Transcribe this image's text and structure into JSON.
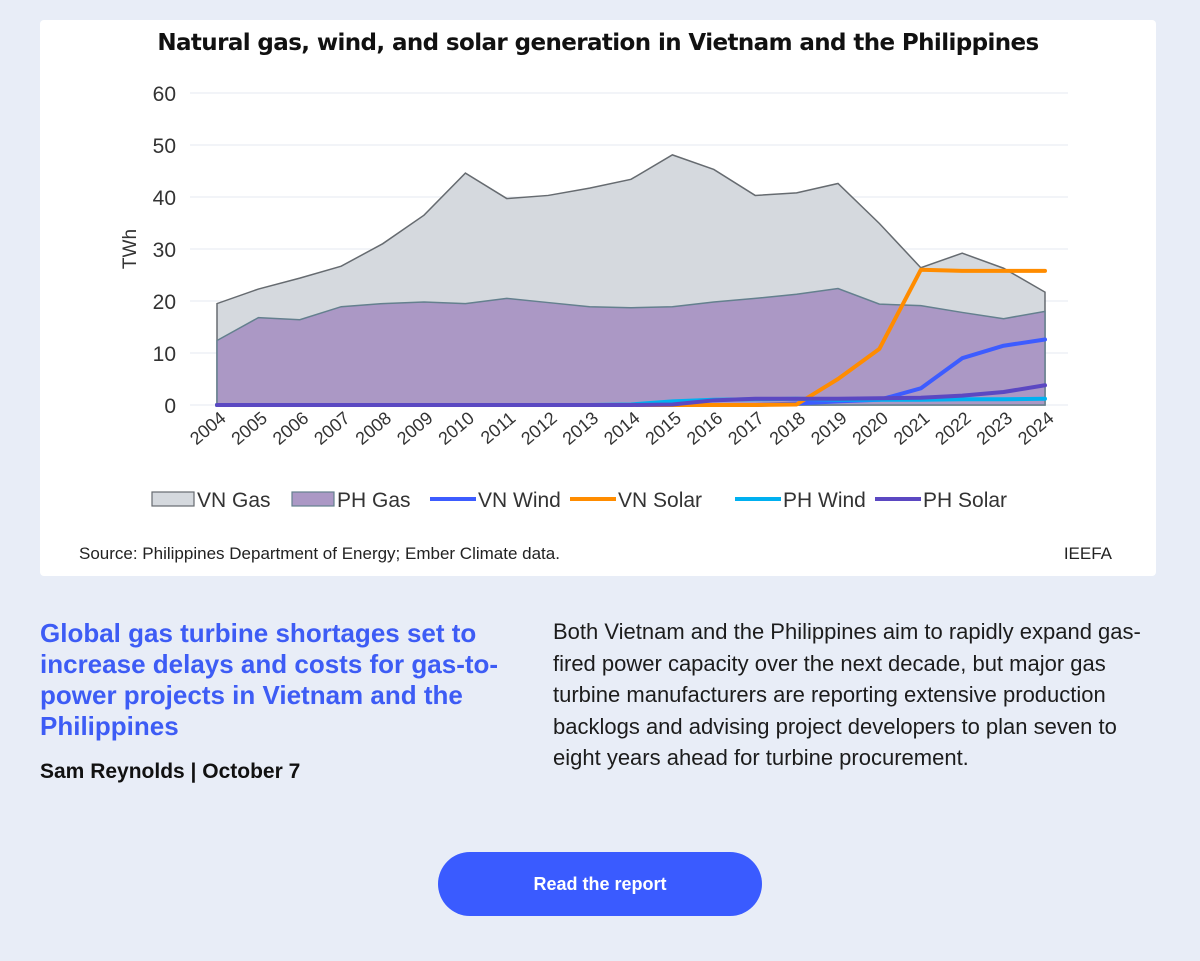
{
  "chart_data": {
    "type": "area",
    "title": "Natural gas, wind, and solar generation in Vietnam and the Philippines",
    "ylabel": "TWh",
    "xlabel": "",
    "ylim": [
      0,
      60
    ],
    "yticks": [
      "0",
      "10",
      "20",
      "30",
      "40",
      "50",
      "60"
    ],
    "categories": [
      "2004",
      "2005",
      "2006",
      "2007",
      "2008",
      "2009",
      "2010",
      "2011",
      "2012",
      "2013",
      "2014",
      "2015",
      "2016",
      "2017",
      "2018",
      "2019",
      "2020",
      "2021",
      "2022",
      "2023",
      "2024"
    ],
    "series": [
      {
        "name": "VN Gas",
        "kind": "area",
        "color": "#d5d9de",
        "stroke": "#666b70",
        "values": [
          19.5,
          22.3,
          24.4,
          26.7,
          31,
          36.5,
          44.6,
          39.7,
          40.3,
          41.7,
          43.4,
          48.1,
          45.3,
          40.3,
          40.8,
          42.6,
          34.9,
          26.4,
          29.2,
          26.3,
          21.7
        ]
      },
      {
        "name": "PH Gas",
        "kind": "area",
        "color": "#ab98c5",
        "stroke": "#64808e",
        "values": [
          12.4,
          16.8,
          16.4,
          18.9,
          19.5,
          19.8,
          19.5,
          20.5,
          19.7,
          18.9,
          18.7,
          18.9,
          19.8,
          20.5,
          21.3,
          22.4,
          19.4,
          19.1,
          17.8,
          16.6,
          18.0
        ]
      },
      {
        "name": "VN Wind",
        "kind": "line",
        "color": "#3d5cff",
        "values": [
          0,
          0,
          0,
          0,
          0,
          0,
          0,
          0,
          0,
          0,
          0,
          0,
          0,
          0,
          0.3,
          0.7,
          1.0,
          3.2,
          9.0,
          11.4,
          12.6
        ]
      },
      {
        "name": "VN Solar",
        "kind": "line",
        "color": "#ff8c00",
        "values": [
          0,
          0,
          0,
          0,
          0,
          0,
          0,
          0,
          0,
          0,
          0,
          0,
          0,
          0,
          0.1,
          5.0,
          10.8,
          26.0,
          25.8,
          25.8,
          25.8
        ]
      },
      {
        "name": "PH  Wind",
        "kind": "line",
        "color": "#00b0f0",
        "values": [
          0,
          0,
          0,
          0,
          0,
          0,
          0,
          0,
          0,
          0,
          0.1,
          0.7,
          1.0,
          1.1,
          1.2,
          1.0,
          1.0,
          1.0,
          1.1,
          1.1,
          1.2
        ]
      },
      {
        "name": "PH Solar",
        "kind": "line",
        "color": "#5b48c2",
        "values": [
          0,
          0,
          0,
          0,
          0,
          0,
          0,
          0,
          0,
          0,
          0,
          0.1,
          0.9,
          1.2,
          1.2,
          1.2,
          1.3,
          1.4,
          1.8,
          2.5,
          3.8
        ]
      }
    ],
    "legend": "bottom",
    "grid": true
  },
  "source": "Source: Philippines Department of Energy; Ember Climate data.",
  "brand": "IEEFA",
  "article": {
    "headline": "Global gas turbine shortages set to increase delays and costs for gas-to-power projects in Vietnam and the Philippines",
    "byline": "Sam Reynolds | October 7",
    "summary": "Both Vietnam and the Philippines aim to rapidly expand gas-fired power capacity over the next decade, but major gas turbine manufacturers are reporting extensive production backlogs and advising project developers to plan seven to eight years ahead for turbine procurement.",
    "button": "Read the report"
  }
}
